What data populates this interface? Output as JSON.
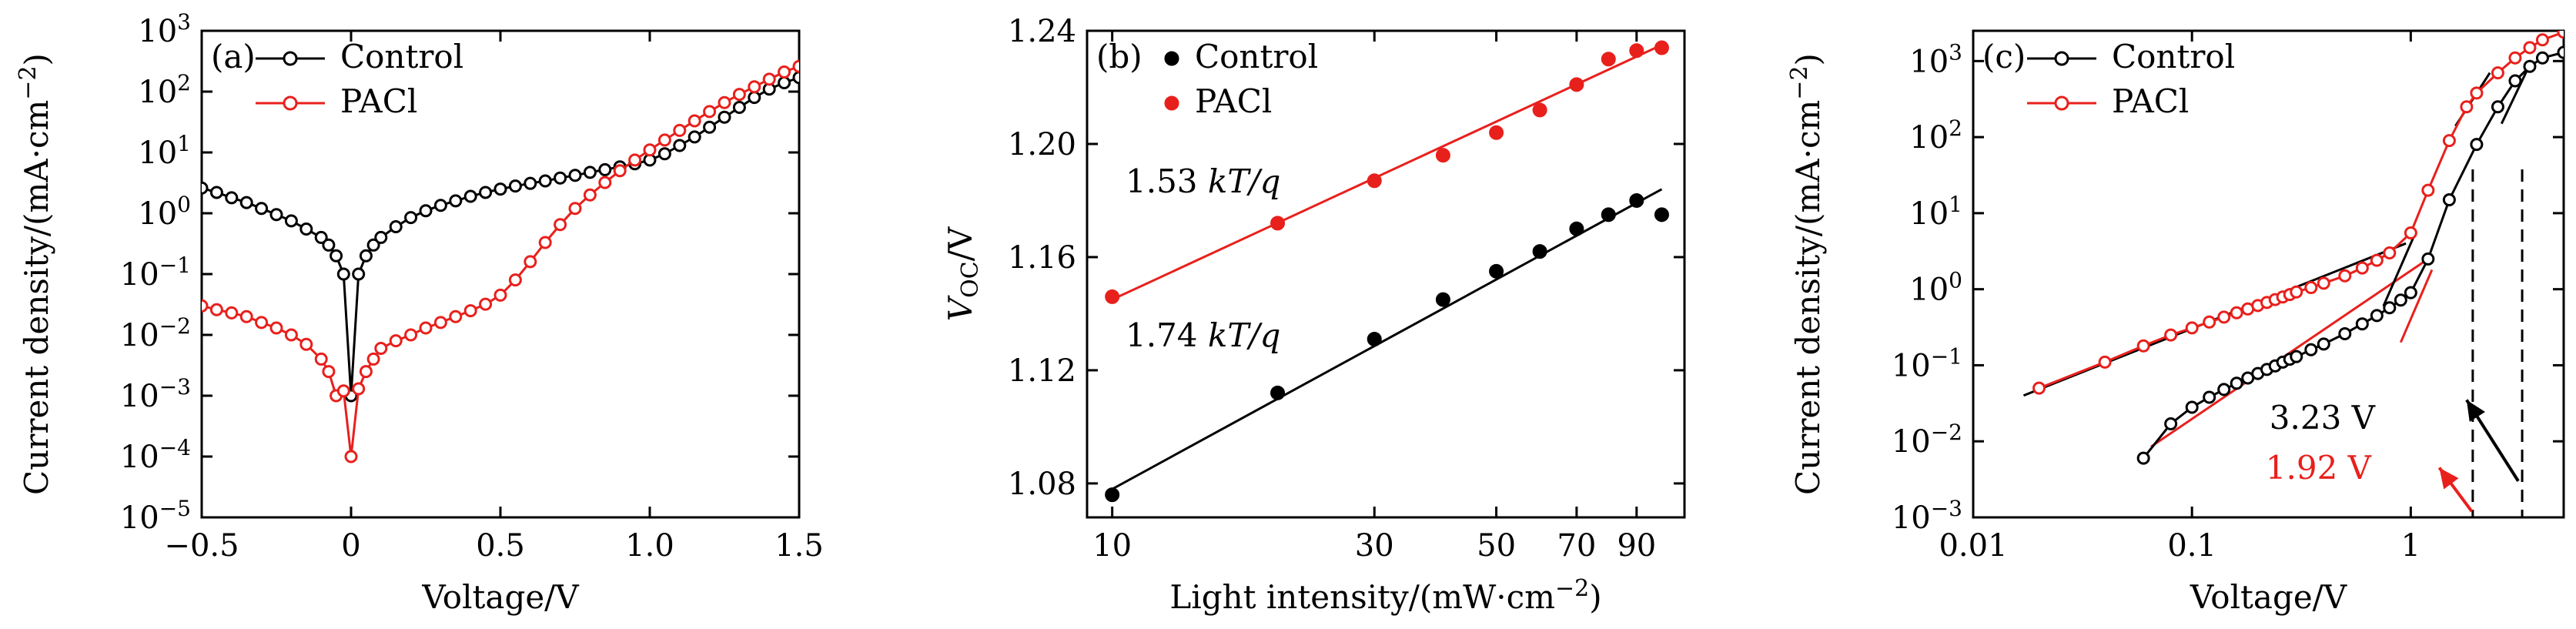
{
  "chart_data": [
    {
      "type": "scatter",
      "panel_label": "(a)",
      "xlabel": "Voltage/V",
      "ylabel": "Current density/(mA·cm⁻²)",
      "xlim": [
        -0.5,
        1.5
      ],
      "ylim": [
        1e-05,
        1000.0
      ],
      "yscale": "log",
      "x_ticks": [
        "−0.5",
        "0",
        "0.5",
        "1.0",
        "1.5"
      ],
      "x_tick_values": [
        -0.5,
        0,
        0.5,
        1.0,
        1.5
      ],
      "y_ticks": [
        "10⁻⁵",
        "10⁻⁴",
        "10⁻³",
        "10⁻²",
        "10⁻¹",
        "10⁰",
        "10¹",
        "10²",
        "10³"
      ],
      "y_tick_values": [
        1e-05,
        0.0001,
        0.001,
        0.01,
        0.1,
        1,
        10,
        100,
        1000
      ],
      "legend_position": "top-left",
      "series": [
        {
          "name": "Control",
          "color": "#000000",
          "x": [
            -0.5,
            -0.45,
            -0.4,
            -0.35,
            -0.3,
            -0.25,
            -0.2,
            -0.15,
            -0.1,
            -0.075,
            -0.05,
            -0.025,
            0,
            0.025,
            0.05,
            0.075,
            0.1,
            0.15,
            0.2,
            0.25,
            0.3,
            0.35,
            0.4,
            0.45,
            0.5,
            0.55,
            0.6,
            0.65,
            0.7,
            0.75,
            0.8,
            0.85,
            0.9,
            0.95,
            1.0,
            1.05,
            1.1,
            1.15,
            1.2,
            1.25,
            1.3,
            1.35,
            1.4,
            1.45,
            1.5
          ],
          "y": [
            2.6,
            2.2,
            1.8,
            1.5,
            1.2,
            0.95,
            0.75,
            0.55,
            0.4,
            0.3,
            0.2,
            0.1,
            0.001,
            0.1,
            0.2,
            0.3,
            0.4,
            0.6,
            0.85,
            1.1,
            1.35,
            1.6,
            1.9,
            2.2,
            2.5,
            2.8,
            3.1,
            3.4,
            3.8,
            4.2,
            4.7,
            5.2,
            5.8,
            6.5,
            7.5,
            9.5,
            13,
            18,
            26,
            38,
            55,
            80,
            110,
            140,
            170
          ]
        },
        {
          "name": "PACl",
          "color": "#e8201c",
          "x": [
            -0.5,
            -0.45,
            -0.4,
            -0.35,
            -0.3,
            -0.25,
            -0.2,
            -0.15,
            -0.1,
            -0.075,
            -0.05,
            -0.025,
            0,
            0.025,
            0.05,
            0.075,
            0.1,
            0.15,
            0.2,
            0.25,
            0.3,
            0.35,
            0.4,
            0.45,
            0.5,
            0.55,
            0.6,
            0.65,
            0.7,
            0.75,
            0.8,
            0.85,
            0.9,
            0.95,
            1.0,
            1.05,
            1.1,
            1.15,
            1.2,
            1.25,
            1.3,
            1.35,
            1.4,
            1.45,
            1.5
          ],
          "y": [
            0.03,
            0.026,
            0.023,
            0.02,
            0.016,
            0.013,
            0.01,
            0.007,
            0.004,
            0.0025,
            0.001,
            0.0012,
            0.0001,
            0.0013,
            0.0025,
            0.004,
            0.006,
            0.008,
            0.01,
            0.013,
            0.016,
            0.02,
            0.025,
            0.032,
            0.045,
            0.08,
            0.16,
            0.33,
            0.65,
            1.2,
            2.0,
            3.2,
            5.0,
            7.5,
            11,
            16,
            23,
            33,
            47,
            66,
            90,
            120,
            160,
            210,
            260
          ]
        }
      ]
    },
    {
      "type": "scatter",
      "panel_label": "(b)",
      "xlabel": "Light intensity/(mW·cm⁻²)",
      "ylabel": "V_OC/V",
      "xlim": [
        9,
        110
      ],
      "xscale": "log",
      "ylim": [
        1.068,
        1.24
      ],
      "x_ticks": [
        "10",
        "30",
        "50",
        "70",
        "90"
      ],
      "x_tick_values": [
        10,
        30,
        50,
        70,
        90
      ],
      "y_ticks": [
        "1.08",
        "1.12",
        "1.16",
        "1.20",
        "1.24"
      ],
      "y_tick_values": [
        1.08,
        1.12,
        1.16,
        1.2,
        1.24
      ],
      "legend_position": "top-left",
      "annotations": [
        {
          "text": "1.53 kT/q",
          "x": 14,
          "y": 1.2
        },
        {
          "text": "1.74 kT/q",
          "x": 14,
          "y": 1.132
        }
      ],
      "series": [
        {
          "name": "Control",
          "color": "#000000",
          "x": [
            10,
            20,
            30,
            40,
            50,
            60,
            70,
            80,
            90,
            100
          ],
          "y": [
            1.076,
            1.112,
            1.131,
            1.145,
            1.155,
            1.162,
            1.17,
            1.175,
            1.18,
            1.175
          ],
          "fit": {
            "x": [
              10,
              100
            ],
            "y": [
              1.078,
              1.184
            ]
          }
        },
        {
          "name": "PACl",
          "color": "#e8201c",
          "x": [
            10,
            20,
            30,
            40,
            50,
            60,
            70,
            80,
            90,
            100
          ],
          "y": [
            1.146,
            1.172,
            1.187,
            1.196,
            1.204,
            1.212,
            1.221,
            1.23,
            1.233,
            1.234
          ],
          "fit": {
            "x": [
              10,
              100
            ],
            "y": [
              1.145,
              1.235
            ]
          }
        }
      ]
    },
    {
      "type": "scatter",
      "panel_label": "(c)",
      "xlabel": "Voltage/V",
      "ylabel": "Current density/(mA·cm⁻²)",
      "xlim": [
        0.01,
        5
      ],
      "xscale": "log",
      "ylim": [
        0.001,
        2500
      ],
      "yscale": "log",
      "x_ticks": [
        "0.01",
        "0.1",
        "1"
      ],
      "x_tick_values": [
        0.01,
        0.1,
        1
      ],
      "y_ticks": [
        "10⁻³",
        "10⁻²",
        "10⁻¹",
        "10⁰",
        "10¹",
        "10²",
        "10³"
      ],
      "y_tick_values": [
        0.001,
        0.01,
        0.1,
        1,
        10,
        100,
        1000
      ],
      "legend_position": "top-left",
      "annotations": [
        {
          "text": "3.23 V",
          "color": "#000000"
        },
        {
          "text": "1.92 V",
          "color": "#e8201c"
        }
      ],
      "series": [
        {
          "name": "Control",
          "color": "#000000",
          "x": [
            0.06,
            0.08,
            0.1,
            0.12,
            0.14,
            0.16,
            0.18,
            0.2,
            0.22,
            0.24,
            0.26,
            0.28,
            0.3,
            0.35,
            0.4,
            0.5,
            0.6,
            0.7,
            0.8,
            0.9,
            1.0,
            1.2,
            1.5,
            2.0,
            2.5,
            3.0,
            3.5,
            4.0,
            5.0
          ],
          "y": [
            0.006,
            0.017,
            0.028,
            0.038,
            0.048,
            0.058,
            0.068,
            0.078,
            0.088,
            0.098,
            0.11,
            0.12,
            0.13,
            0.16,
            0.19,
            0.26,
            0.35,
            0.45,
            0.57,
            0.72,
            0.9,
            2.5,
            15,
            80,
            250,
            550,
            850,
            1100,
            1300
          ]
        },
        {
          "name": "PACl",
          "color": "#e8201c",
          "x": [
            0.02,
            0.04,
            0.06,
            0.08,
            0.1,
            0.12,
            0.14,
            0.16,
            0.18,
            0.2,
            0.22,
            0.24,
            0.26,
            0.28,
            0.3,
            0.35,
            0.4,
            0.5,
            0.6,
            0.7,
            0.8,
            1.0,
            1.2,
            1.5,
            1.8,
            2.0,
            2.5,
            3.0,
            3.5,
            4.0,
            5.0
          ],
          "y": [
            0.05,
            0.11,
            0.18,
            0.25,
            0.31,
            0.37,
            0.43,
            0.49,
            0.55,
            0.61,
            0.67,
            0.73,
            0.79,
            0.85,
            0.92,
            1.05,
            1.2,
            1.5,
            1.9,
            2.4,
            3.0,
            5.5,
            20,
            90,
            250,
            380,
            700,
            1100,
            1500,
            1900,
            2400
          ]
        }
      ],
      "fit_lines": [
        {
          "color": "#000000",
          "x": [
            0.017,
            0.95
          ],
          "y": [
            0.04,
            4.0
          ]
        },
        {
          "color": "#e8201c",
          "x": [
            0.065,
            1.2
          ],
          "y": [
            0.0085,
            2.5
          ]
        },
        {
          "color": "#000000",
          "x": [
            0.75,
            1.05
          ],
          "y": [
            0.6,
            5.5
          ]
        },
        {
          "color": "#e8201c",
          "x": [
            0.9,
            1.25
          ],
          "y": [
            0.2,
            1.8
          ]
        },
        {
          "color": "#000000",
          "x": [
            1.6,
            2.3
          ],
          "y": [
            140,
            700
          ]
        },
        {
          "color": "#000000",
          "x": [
            2.6,
            3.5
          ],
          "y": [
            150,
            900
          ]
        }
      ],
      "vlines": [
        1.92,
        3.23
      ],
      "arrows": [
        {
          "color": "#000000",
          "from": [
            3.1,
            0.003
          ],
          "to": [
            1.8,
            0.035
          ]
        },
        {
          "color": "#e8201c",
          "from": [
            1.9,
            0.0012
          ],
          "to": [
            1.35,
            0.0045
          ]
        }
      ]
    }
  ]
}
